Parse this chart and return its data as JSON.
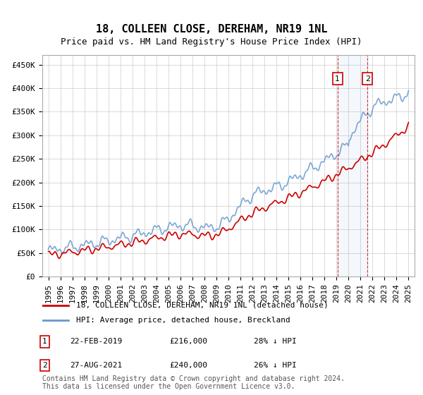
{
  "title": "18, COLLEEN CLOSE, DEREHAM, NR19 1NL",
  "subtitle": "Price paid vs. HM Land Registry's House Price Index (HPI)",
  "ylabel": "",
  "ylim": [
    0,
    460000
  ],
  "yticks": [
    0,
    50000,
    100000,
    150000,
    200000,
    250000,
    300000,
    350000,
    400000,
    450000
  ],
  "ytick_labels": [
    "£0",
    "£50K",
    "£100K",
    "£150K",
    "£200K",
    "£250K",
    "£300K",
    "£350K",
    "£400K",
    "£450K"
  ],
  "hpi_color": "#6699cc",
  "price_color": "#cc0000",
  "annotation_box_color": "#cc0000",
  "vline_color": "#cc0000",
  "vline_style": "--",
  "legend_label_price": "18, COLLEEN CLOSE, DEREHAM, NR19 1NL (detached house)",
  "legend_label_hpi": "HPI: Average price, detached house, Breckland",
  "transaction1_date": "22-FEB-2019",
  "transaction1_price": 216000,
  "transaction1_label": "1",
  "transaction1_pct": "28% ↓ HPI",
  "transaction2_date": "27-AUG-2021",
  "transaction2_price": 240000,
  "transaction2_label": "2",
  "transaction2_pct": "26% ↓ HPI",
  "footer": "Contains HM Land Registry data © Crown copyright and database right 2024.\nThis data is licensed under the Open Government Licence v3.0.",
  "background_color": "#ffffff",
  "grid_color": "#cccccc",
  "title_fontsize": 11,
  "subtitle_fontsize": 9,
  "tick_fontsize": 8,
  "legend_fontsize": 8,
  "footer_fontsize": 7
}
